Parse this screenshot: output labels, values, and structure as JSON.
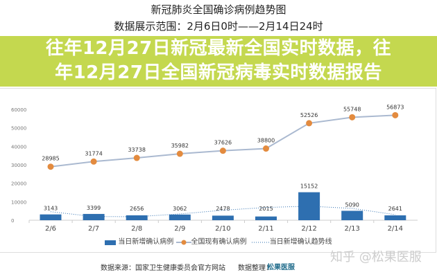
{
  "chart_data": {
    "type": "bar",
    "title": "新冠肺炎全国确诊病例趋势图",
    "subtitle": "数据展示范围：2月6日0时——2月14日24时",
    "categories": [
      "2/6",
      "2/7",
      "2/8",
      "2/9",
      "2/10",
      "2/11",
      "2/12",
      "2/13",
      "2/14"
    ],
    "ylim": [
      0,
      60000
    ],
    "yticks": [
      "0",
      "10000",
      "20000",
      "30000",
      "40000",
      "50000",
      "60000"
    ],
    "grid": false,
    "legend_position": "bottom",
    "series": [
      {
        "name": "当日新增确认病例",
        "type": "bar",
        "color": "#2e6fb0",
        "values": [
          3143,
          3399,
          2656,
          3062,
          2478,
          2015,
          15152,
          5090,
          2641
        ]
      },
      {
        "name": "全国现有确认病例",
        "type": "line",
        "color": "#e38b3f",
        "line_color": "#aab9d0",
        "values": [
          28985,
          31774,
          33738,
          35982,
          37626,
          38800,
          52526,
          55748,
          56873
        ]
      },
      {
        "name": "当日新增确认趋势线",
        "type": "dotted-line",
        "color": "#2e6fb0",
        "values": [
          4600,
          2000,
          1900,
          3400,
          5400,
          6900,
          7600,
          6400,
          3000
        ]
      }
    ]
  },
  "banner": {
    "line1": "往年12月27日新冠最新全国实时数据，往",
    "line2": "年12月27日全国新冠病毒实时数据报告"
  },
  "footer": {
    "source": "数据来源：国家卫生健康委员会官方网站",
    "organizer": "数据整理：",
    "brand": "松果医服",
    "watermark": "知乎 @松果医服"
  }
}
